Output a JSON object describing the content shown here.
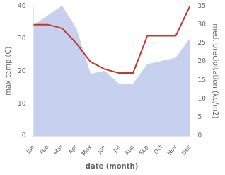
{
  "chart_data": {
    "type": "line",
    "xlabel": "date (month)",
    "ylabel": "max temp (C)",
    "y2label": "med. precipitation (kg/m2)",
    "categories": [
      "Jan",
      "Feb",
      "Mar",
      "Apr",
      "May",
      "Jun",
      "Jul",
      "Aug",
      "Sep",
      "Oct",
      "Nov",
      "Dec"
    ],
    "series": [
      {
        "type": "area",
        "color": "#c8d0f0",
        "values": [
          34,
          37,
          40,
          33,
          19,
          20,
          16,
          16,
          22,
          23,
          24,
          30
        ]
      },
      {
        "type": "line",
        "color": "#c0392b",
        "axis": "y2",
        "values": [
          30,
          30,
          29,
          25,
          20,
          18,
          17,
          17,
          27,
          27,
          27,
          35
        ]
      }
    ],
    "ylim": [
      0,
      40
    ],
    "yticks": [
      0,
      10,
      20,
      30,
      40
    ],
    "y2lim": [
      0,
      35
    ],
    "y2ticks": [
      0,
      5,
      10,
      15,
      20,
      25,
      30,
      35
    ],
    "grid": false
  }
}
